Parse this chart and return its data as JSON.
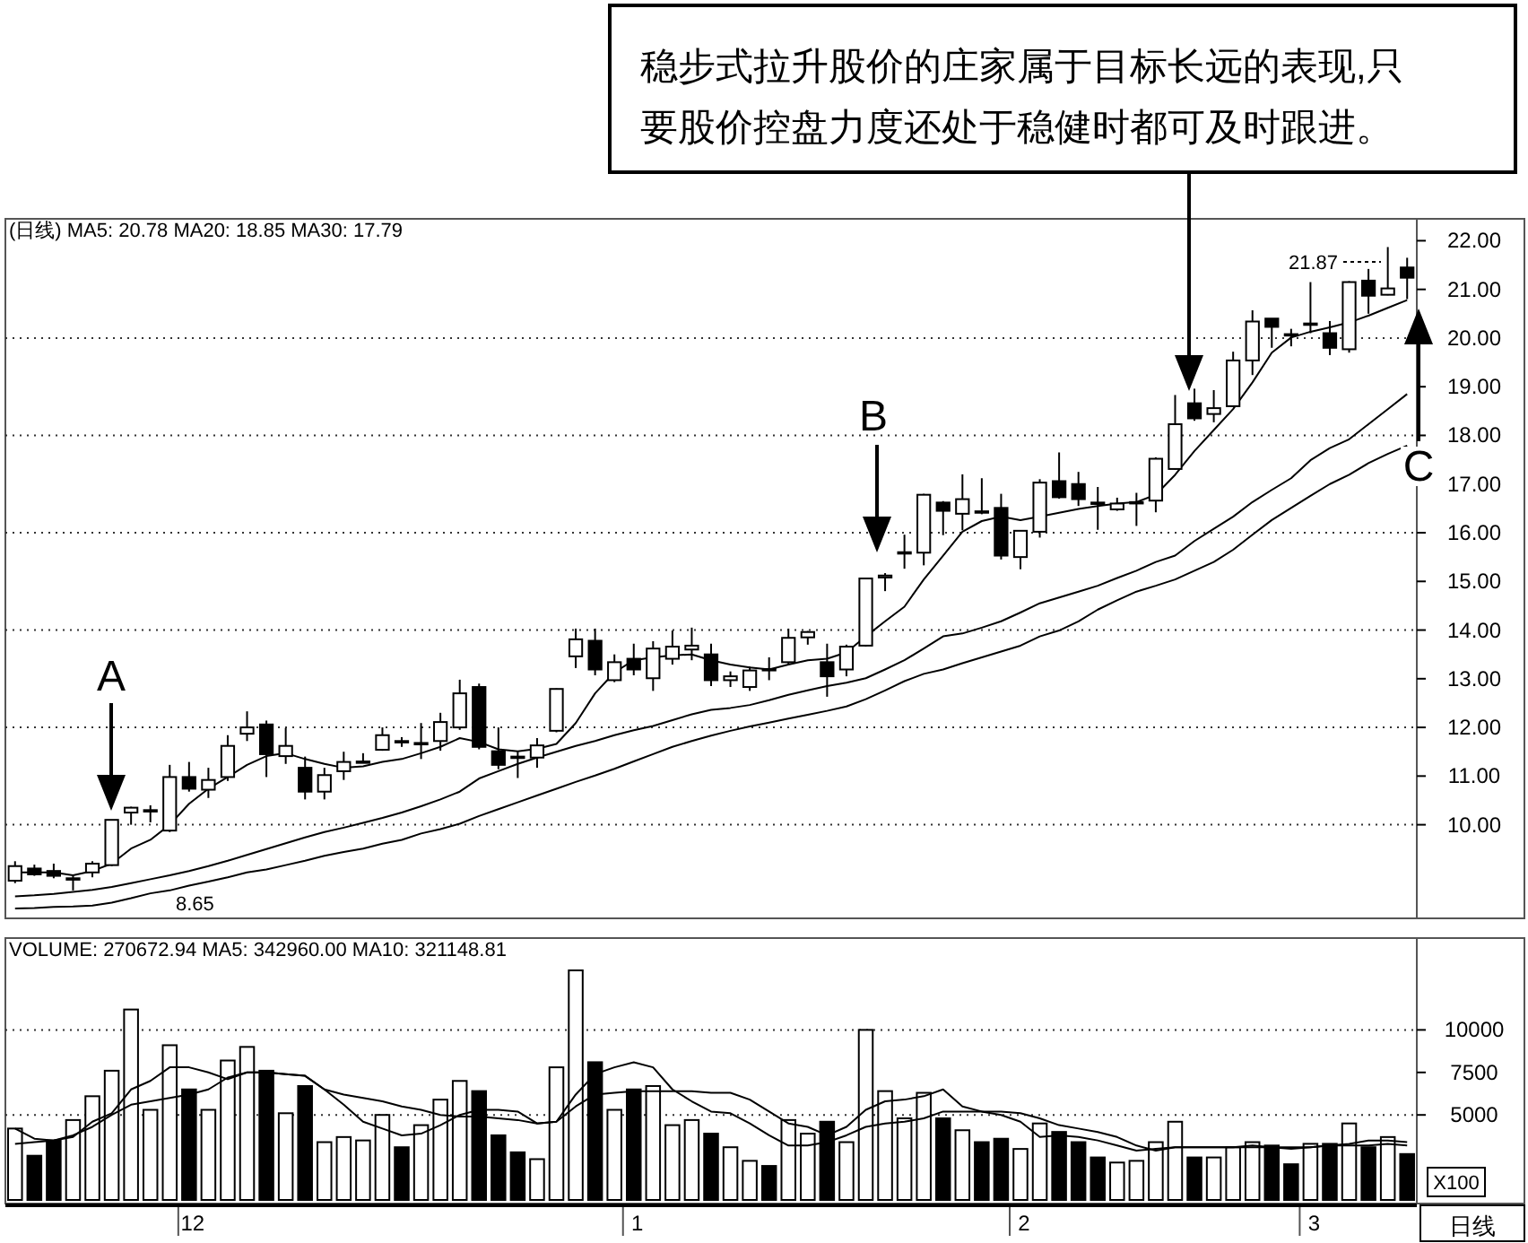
{
  "chart_data": [
    {
      "type": "candlestick",
      "title": "(日线) MA5: 20.78 MA20: 18.85 MA30: 17.79",
      "categories": [
        null,
        null,
        null,
        null,
        null,
        null,
        null,
        null,
        null,
        null,
        null,
        null,
        null,
        null,
        null,
        null,
        null,
        null,
        null,
        null,
        null,
        null,
        null,
        null,
        null,
        null,
        null,
        null,
        null,
        null,
        null,
        null,
        null,
        null,
        null,
        null,
        null,
        null,
        null,
        null,
        null,
        null,
        null,
        null,
        null,
        null,
        null,
        null,
        null,
        null,
        null,
        null,
        null,
        null,
        null,
        null,
        null,
        null,
        null,
        null,
        null,
        null,
        null,
        null,
        null,
        null,
        null,
        null,
        null,
        null,
        null,
        null,
        null
      ],
      "ohlc": [
        [
          8.85,
          9.25,
          8.8,
          9.15
        ],
        [
          9.1,
          9.18,
          8.95,
          8.98
        ],
        [
          9.05,
          9.2,
          8.9,
          8.95
        ],
        [
          8.88,
          8.95,
          8.65,
          8.9
        ],
        [
          9.02,
          9.25,
          8.92,
          9.2
        ],
        [
          9.17,
          10.1,
          9.15,
          10.1
        ],
        [
          10.25,
          10.37,
          10.0,
          10.35
        ],
        [
          10.28,
          10.4,
          10.05,
          10.3
        ],
        [
          9.88,
          11.23,
          9.85,
          10.98
        ],
        [
          10.98,
          11.29,
          10.68,
          10.74
        ],
        [
          10.72,
          11.17,
          10.55,
          10.92
        ],
        [
          10.98,
          11.84,
          10.9,
          11.62
        ],
        [
          11.87,
          12.33,
          11.72,
          12.0
        ],
        [
          12.06,
          12.14,
          10.98,
          11.45
        ],
        [
          11.41,
          11.99,
          11.25,
          11.62
        ],
        [
          11.17,
          11.4,
          10.52,
          10.68
        ],
        [
          10.68,
          11.17,
          10.52,
          11.02
        ],
        [
          11.1,
          11.5,
          10.92,
          11.29
        ],
        [
          11.29,
          11.47,
          11.27,
          11.3
        ],
        [
          11.54,
          12.0,
          11.52,
          11.84
        ],
        [
          11.72,
          11.8,
          11.6,
          11.7
        ],
        [
          11.66,
          12.09,
          11.35,
          11.68
        ],
        [
          11.72,
          12.3,
          11.52,
          12.11
        ],
        [
          12.0,
          12.98,
          11.95,
          12.7
        ],
        [
          12.83,
          12.9,
          11.55,
          11.6
        ],
        [
          11.51,
          12.0,
          11.14,
          11.23
        ],
        [
          11.4,
          11.5,
          10.96,
          11.37
        ],
        [
          11.38,
          11.78,
          11.17,
          11.63
        ],
        [
          11.93,
          12.8,
          11.9,
          12.79
        ],
        [
          13.46,
          14.03,
          13.22,
          13.81
        ],
        [
          13.78,
          14.03,
          13.07,
          13.19
        ],
        [
          12.97,
          13.5,
          12.93,
          13.34
        ],
        [
          13.41,
          13.72,
          13.07,
          13.19
        ],
        [
          13.01,
          13.77,
          12.75,
          13.62
        ],
        [
          13.41,
          13.99,
          13.29,
          13.66
        ],
        [
          13.6,
          14.05,
          13.38,
          13.68
        ],
        [
          13.5,
          13.72,
          12.85,
          12.97
        ],
        [
          12.97,
          13.15,
          12.83,
          13.05
        ],
        [
          12.83,
          13.25,
          12.75,
          13.17
        ],
        [
          13.2,
          13.44,
          12.97,
          13.18
        ],
        [
          13.34,
          14.03,
          13.3,
          13.84
        ],
        [
          13.85,
          13.98,
          13.7,
          13.96
        ],
        [
          13.34,
          13.72,
          12.63,
          13.05
        ],
        [
          13.19,
          13.7,
          13.05,
          13.66
        ],
        [
          13.68,
          15.06,
          13.66,
          15.06
        ],
        [
          15.08,
          15.17,
          14.8,
          15.12
        ],
        [
          15.58,
          15.96,
          15.26,
          15.6
        ],
        [
          15.59,
          16.8,
          15.33,
          16.78
        ],
        [
          16.62,
          16.65,
          15.95,
          16.45
        ],
        [
          16.39,
          17.2,
          16.05,
          16.69
        ],
        [
          16.44,
          17.12,
          16.38,
          16.42
        ],
        [
          16.51,
          16.8,
          15.45,
          15.53
        ],
        [
          15.5,
          16.04,
          15.25,
          16.04
        ],
        [
          16.02,
          17.1,
          15.9,
          17.03
        ],
        [
          17.06,
          17.65,
          16.7,
          16.73
        ],
        [
          17.0,
          17.25,
          16.55,
          16.69
        ],
        [
          16.62,
          16.94,
          16.06,
          16.6
        ],
        [
          16.48,
          16.72,
          16.45,
          16.6
        ],
        [
          16.62,
          16.82,
          16.14,
          16.63
        ],
        [
          16.66,
          17.55,
          16.42,
          17.52
        ],
        [
          17.31,
          18.83,
          17.3,
          18.23
        ],
        [
          18.66,
          18.96,
          18.3,
          18.35
        ],
        [
          18.44,
          18.93,
          18.27,
          18.56
        ],
        [
          18.6,
          19.72,
          18.58,
          19.54
        ],
        [
          19.54,
          20.57,
          19.24,
          20.34
        ],
        [
          20.4,
          20.4,
          19.8,
          20.23
        ],
        [
          20.08,
          20.19,
          19.83,
          20.06
        ],
        [
          20.28,
          21.15,
          20.1,
          20.3
        ],
        [
          20.1,
          20.35,
          19.65,
          19.8
        ],
        [
          19.77,
          21.17,
          19.7,
          21.15
        ],
        [
          21.18,
          21.42,
          20.5,
          20.87
        ],
        [
          20.89,
          21.87,
          20.88,
          21.02
        ],
        [
          21.45,
          21.65,
          20.8,
          21.24
        ]
      ],
      "series": [
        {
          "type": "line",
          "color": "#000000",
          "values": [
            9.02,
            9.02,
            9.02,
            8.96,
            9.05,
            9.2,
            9.51,
            9.69,
            10.0,
            10.43,
            10.74,
            10.98,
            11.23,
            11.41,
            11.47,
            11.35,
            11.25,
            11.17,
            11.2,
            11.29,
            11.35,
            11.47,
            11.6,
            11.78,
            11.7,
            11.55,
            11.51,
            11.56,
            11.66,
            12.09,
            12.7,
            13.13,
            13.38,
            13.44,
            13.48,
            13.5,
            13.38,
            13.29,
            13.23,
            13.19,
            13.29,
            13.38,
            13.41,
            13.54,
            13.87,
            14.18,
            14.48,
            15.04,
            15.53,
            16.02,
            16.24,
            16.33,
            16.26,
            16.33,
            16.41,
            16.49,
            16.55,
            16.6,
            16.63,
            16.78,
            17.19,
            17.68,
            18.11,
            18.54,
            19.09,
            19.7,
            20.01,
            20.13,
            20.22,
            20.32,
            20.46,
            20.62,
            20.78
          ]
        },
        {
          "type": "line",
          "color": "#000000",
          "values": [
            8.53,
            8.55,
            8.58,
            8.62,
            8.66,
            8.72,
            8.8,
            8.88,
            8.96,
            9.05,
            9.15,
            9.26,
            9.38,
            9.5,
            9.62,
            9.74,
            9.85,
            9.94,
            10.04,
            10.14,
            10.25,
            10.38,
            10.52,
            10.68,
            10.95,
            11.1,
            11.25,
            11.38,
            11.5,
            11.62,
            11.72,
            11.84,
            11.94,
            12.03,
            12.15,
            12.27,
            12.36,
            12.4,
            12.46,
            12.56,
            12.67,
            12.76,
            12.85,
            12.92,
            13.01,
            13.19,
            13.38,
            13.62,
            13.87,
            13.93,
            14.05,
            14.18,
            14.36,
            14.55,
            14.67,
            14.79,
            14.91,
            15.07,
            15.22,
            15.4,
            15.53,
            15.83,
            16.08,
            16.33,
            16.63,
            16.88,
            17.12,
            17.49,
            17.74,
            17.92,
            18.23,
            18.54,
            18.85
          ]
        },
        {
          "type": "line",
          "color": "#000000",
          "values": [
            8.28,
            8.29,
            8.31,
            8.32,
            8.34,
            8.4,
            8.49,
            8.59,
            8.65,
            8.75,
            8.83,
            8.92,
            9.02,
            9.08,
            9.17,
            9.26,
            9.36,
            9.44,
            9.51,
            9.61,
            9.69,
            9.82,
            9.91,
            10.02,
            10.18,
            10.32,
            10.46,
            10.6,
            10.74,
            10.88,
            11.01,
            11.15,
            11.3,
            11.45,
            11.6,
            11.72,
            11.83,
            11.93,
            12.02,
            12.1,
            12.18,
            12.26,
            12.34,
            12.43,
            12.58,
            12.76,
            12.95,
            13.1,
            13.19,
            13.32,
            13.44,
            13.56,
            13.68,
            13.87,
            13.99,
            14.18,
            14.42,
            14.61,
            14.79,
            14.91,
            15.04,
            15.22,
            15.4,
            15.65,
            15.96,
            16.26,
            16.51,
            16.76,
            17.0,
            17.19,
            17.43,
            17.62,
            17.79
          ]
        }
      ],
      "ylim": [
        8.15,
        22.45
      ],
      "yticks": [
        {
          "value": 10,
          "label": "10.00"
        },
        {
          "value": 11,
          "label": "11.00"
        },
        {
          "value": 12,
          "label": "12.00"
        },
        {
          "value": 13,
          "label": "13.00"
        },
        {
          "value": 14,
          "label": "14.00"
        },
        {
          "value": 15,
          "label": "15.00"
        },
        {
          "value": 16,
          "label": "16.00"
        },
        {
          "value": 17,
          "label": "17.00"
        },
        {
          "value": 18,
          "label": "18.00"
        },
        {
          "value": 19,
          "label": "19.00"
        },
        {
          "value": 20,
          "label": "20.00"
        },
        {
          "value": 21,
          "label": "21.00"
        },
        {
          "value": 22,
          "label": "22.00"
        }
      ],
      "ref_lines": [
        {
          "axis": "y",
          "value": 10,
          "line_style": "dotted"
        },
        {
          "axis": "y",
          "value": 12,
          "line_style": "dotted"
        },
        {
          "axis": "y",
          "value": 14,
          "line_style": "dotted"
        },
        {
          "axis": "y",
          "value": 16,
          "line_style": "dotted"
        },
        {
          "axis": "y",
          "value": 18,
          "line_style": "dotted"
        },
        {
          "axis": "y",
          "value": 20,
          "line_style": "dotted"
        }
      ],
      "tick_labels": "y",
      "annotations": [
        "稳步式拉升股价的庄家属于目标长远的表现,只要股价控盘力度还处于稳健时都可及时跟进。",
        "A",
        "B",
        "C",
        {
          "text": "8.65",
          "y": 8.65
        },
        "21.87"
      ]
    },
    {
      "type": "bar",
      "title": "VOLUME: 270672.94 MA5: 342960.00 MA10: 321148.81",
      "ylabel": "X100",
      "categories": [
        null,
        null,
        null,
        null,
        null,
        null,
        null,
        null,
        null,
        "12",
        null,
        null,
        null,
        null,
        null,
        null,
        null,
        null,
        null,
        null,
        null,
        null,
        null,
        null,
        null,
        null,
        null,
        null,
        null,
        null,
        null,
        null,
        "1",
        null,
        null,
        null,
        null,
        null,
        null,
        null,
        null,
        null,
        null,
        null,
        null,
        null,
        null,
        null,
        null,
        null,
        null,
        null,
        "2",
        null,
        null,
        null,
        null,
        null,
        null,
        null,
        null,
        null,
        null,
        null,
        null,
        null,
        null,
        "3",
        null,
        null,
        null,
        null,
        null
      ],
      "series": [
        {
          "type": "bar",
          "values": [
            4200,
            2600,
            3500,
            4700,
            6100,
            7600,
            11200,
            5300,
            9100,
            6500,
            5300,
            8200,
            9000,
            7600,
            5100,
            6700,
            3400,
            3700,
            3500,
            5000,
            3100,
            4400,
            5900,
            7000,
            6400,
            3800,
            2800,
            2400,
            7800,
            13500,
            8100,
            5300,
            6500,
            6700,
            4400,
            4700,
            3900,
            3100,
            2300,
            2000,
            4700,
            3900,
            4600,
            3400,
            10000,
            6400,
            4800,
            6300,
            4800,
            4100,
            3400,
            3600,
            3000,
            4500,
            4000,
            3400,
            2500,
            2200,
            2300,
            3400,
            4600,
            2500,
            2500,
            3100,
            3400,
            3200,
            2100,
            3300,
            3300,
            4500,
            3100,
            3700,
            2700
          ],
          "colors": [
            "#ffffff",
            "#000000",
            "#000000",
            "#ffffff",
            "#ffffff",
            "#ffffff",
            "#ffffff",
            "#ffffff",
            "#ffffff",
            "#000000",
            "#ffffff",
            "#ffffff",
            "#ffffff",
            "#000000",
            "#ffffff",
            "#000000",
            "#ffffff",
            "#ffffff",
            "#ffffff",
            "#ffffff",
            "#000000",
            "#ffffff",
            "#ffffff",
            "#ffffff",
            "#000000",
            "#000000",
            "#000000",
            "#ffffff",
            "#ffffff",
            "#ffffff",
            "#000000",
            "#ffffff",
            "#000000",
            "#ffffff",
            "#ffffff",
            "#ffffff",
            "#000000",
            "#ffffff",
            "#ffffff",
            "#000000",
            "#ffffff",
            "#ffffff",
            "#000000",
            "#ffffff",
            "#ffffff",
            "#ffffff",
            "#ffffff",
            "#ffffff",
            "#000000",
            "#ffffff",
            "#000000",
            "#000000",
            "#ffffff",
            "#ffffff",
            "#000000",
            "#000000",
            "#000000",
            "#ffffff",
            "#ffffff",
            "#ffffff",
            "#ffffff",
            "#000000",
            "#ffffff",
            "#ffffff",
            "#ffffff",
            "#000000",
            "#000000",
            "#ffffff",
            "#000000",
            "#ffffff",
            "#000000",
            "#ffffff",
            "#000000"
          ]
        },
        {
          "type": "line",
          "color": "#000000",
          "values": [
            4200,
            3600,
            3500,
            3700,
            4600,
            5100,
            6500,
            7000,
            7800,
            7800,
            7500,
            7100,
            7500,
            7500,
            7400,
            7300,
            6500,
            5600,
            4600,
            4200,
            3800,
            3900,
            4400,
            5000,
            5300,
            5300,
            5200,
            4500,
            4600,
            6200,
            7400,
            7800,
            8100,
            7800,
            6500,
            5800,
            5200,
            5100,
            4500,
            3800,
            3200,
            3200,
            3400,
            3800,
            4300,
            4500,
            4600,
            4800,
            5200,
            5200,
            5200,
            5000,
            4600,
            3700,
            3800,
            3700,
            3500,
            3200,
            2900,
            3000,
            3100,
            3100,
            3100,
            3100,
            3100,
            3100,
            3100,
            3100,
            3200,
            3300,
            3500,
            3500,
            3400
          ]
        },
        {
          "type": "line",
          "color": "#000000",
          "values": [
            3300,
            3400,
            3500,
            3800,
            4300,
            5000,
            5600,
            5800,
            6000,
            6200,
            6500,
            7200,
            7500,
            7500,
            7400,
            7300,
            6500,
            6200,
            6000,
            5800,
            5500,
            5300,
            5000,
            4900,
            4900,
            4800,
            4700,
            4500,
            4600,
            5500,
            6200,
            6300,
            6400,
            6400,
            6400,
            6400,
            6300,
            6300,
            5900,
            5200,
            4500,
            4300,
            3800,
            4300,
            5300,
            5800,
            5900,
            6100,
            6500,
            5500,
            5200,
            5200,
            5100,
            4800,
            4400,
            4200,
            4000,
            3700,
            3200,
            2900,
            3100,
            3100,
            3100,
            3100,
            3200,
            3100,
            3000,
            3100,
            3200,
            3200,
            3200,
            3300,
            3200
          ]
        }
      ],
      "ylim": [
        0,
        15400
      ],
      "yticks": [
        5000,
        7500,
        10000
      ],
      "ref_lines": [
        {
          "axis": "y",
          "value": 5000,
          "line_style": "dotted"
        },
        {
          "axis": "y",
          "value": 10000,
          "line_style": "dotted"
        }
      ],
      "annotations": [
        "日线"
      ]
    }
  ]
}
